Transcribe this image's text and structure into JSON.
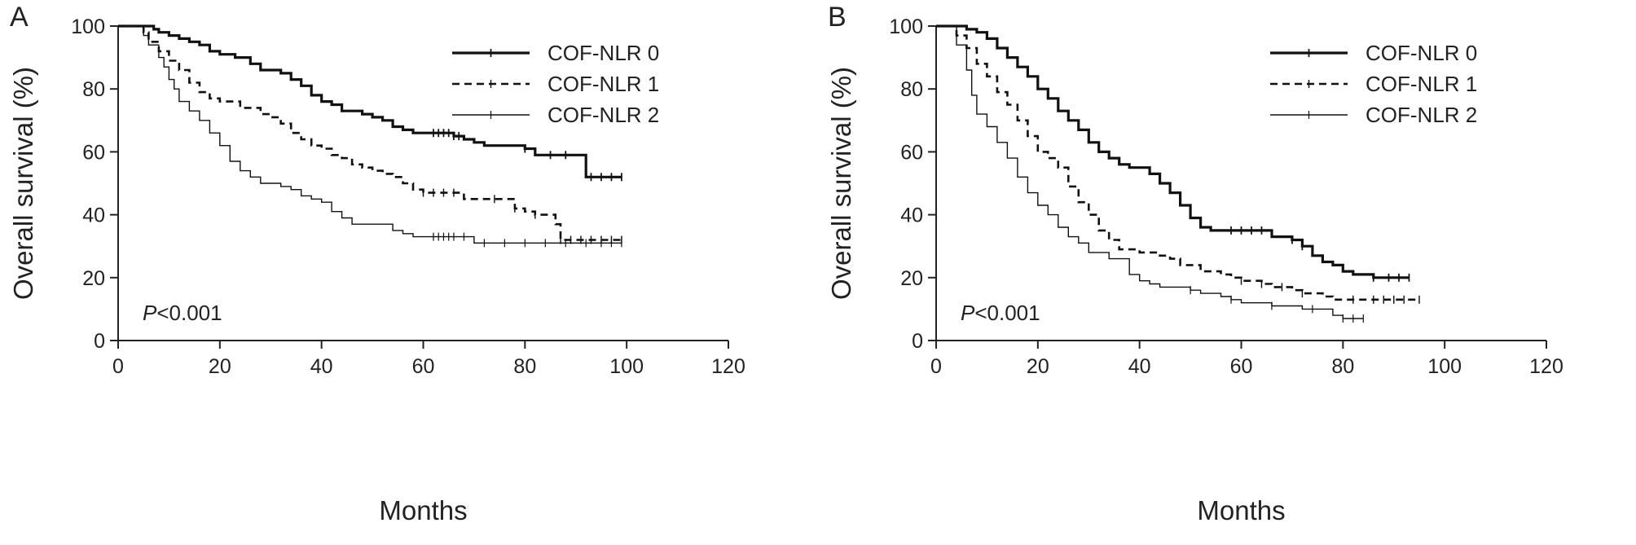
{
  "chart_data": [
    {
      "type": "line",
      "subtype": "kaplan-meier",
      "panel_label": "A",
      "title": "",
      "xlabel": "Months",
      "ylabel": "Overall survival (%)",
      "xlim": [
        0,
        120
      ],
      "ylim": [
        0,
        100
      ],
      "xticks": [
        0,
        20,
        40,
        60,
        80,
        100,
        120
      ],
      "yticks": [
        0,
        20,
        40,
        60,
        80,
        100
      ],
      "grid": false,
      "legend_position": "top-right",
      "annotation": {
        "italic": "P",
        "text": "<0.001"
      },
      "series": [
        {
          "name": "COF-NLR 0",
          "style": "solid-thick",
          "points": [
            [
              0,
              100
            ],
            [
              6,
              100
            ],
            [
              7,
              99
            ],
            [
              8,
              98
            ],
            [
              10,
              97
            ],
            [
              12,
              96
            ],
            [
              14,
              95
            ],
            [
              16,
              94
            ],
            [
              18,
              92
            ],
            [
              20,
              91
            ],
            [
              23,
              90
            ],
            [
              26,
              88
            ],
            [
              28,
              86
            ],
            [
              32,
              85
            ],
            [
              34,
              83
            ],
            [
              36,
              81
            ],
            [
              38,
              78
            ],
            [
              40,
              76
            ],
            [
              42,
              75
            ],
            [
              44,
              73
            ],
            [
              48,
              72
            ],
            [
              50,
              71
            ],
            [
              52,
              70
            ],
            [
              54,
              68
            ],
            [
              56,
              67
            ],
            [
              58,
              66
            ],
            [
              64,
              66
            ],
            [
              66,
              65
            ],
            [
              68,
              64
            ],
            [
              70,
              63
            ],
            [
              72,
              62
            ],
            [
              78,
              62
            ],
            [
              80,
              61
            ],
            [
              82,
              59
            ],
            [
              92,
              59
            ],
            [
              92,
              52
            ],
            [
              99,
              52
            ]
          ],
          "censor_x": [
            62,
            63,
            64,
            65,
            66,
            67,
            80,
            85,
            88,
            93,
            95,
            97,
            99
          ]
        },
        {
          "name": "COF-NLR 1",
          "style": "dashed",
          "points": [
            [
              0,
              100
            ],
            [
              5,
              98
            ],
            [
              6,
              95
            ],
            [
              8,
              92
            ],
            [
              10,
              89
            ],
            [
              12,
              86
            ],
            [
              14,
              82
            ],
            [
              16,
              79
            ],
            [
              18,
              77
            ],
            [
              20,
              76
            ],
            [
              24,
              74
            ],
            [
              28,
              72
            ],
            [
              30,
              71
            ],
            [
              32,
              69
            ],
            [
              34,
              66
            ],
            [
              36,
              64
            ],
            [
              38,
              62
            ],
            [
              40,
              61
            ],
            [
              42,
              59
            ],
            [
              44,
              58
            ],
            [
              46,
              56
            ],
            [
              48,
              55
            ],
            [
              50,
              54
            ],
            [
              52,
              53
            ],
            [
              54,
              52
            ],
            [
              56,
              50
            ],
            [
              58,
              48
            ],
            [
              60,
              47
            ],
            [
              66,
              47
            ],
            [
              68,
              45
            ],
            [
              72,
              45
            ],
            [
              76,
              45
            ],
            [
              78,
              42
            ],
            [
              80,
              41
            ],
            [
              82,
              40
            ],
            [
              84,
              40
            ],
            [
              86,
              37
            ],
            [
              87,
              32
            ],
            [
              99,
              32
            ]
          ],
          "censor_x": [
            60,
            62,
            64,
            66,
            74,
            78,
            82,
            87,
            89,
            91,
            93,
            95,
            97,
            99
          ]
        },
        {
          "name": "COF-NLR 2",
          "style": "solid-thin",
          "points": [
            [
              0,
              100
            ],
            [
              5,
              97
            ],
            [
              6,
              94
            ],
            [
              8,
              90
            ],
            [
              9,
              87
            ],
            [
              10,
              83
            ],
            [
              11,
              80
            ],
            [
              12,
              76
            ],
            [
              14,
              73
            ],
            [
              16,
              70
            ],
            [
              18,
              66
            ],
            [
              20,
              62
            ],
            [
              22,
              57
            ],
            [
              24,
              54
            ],
            [
              26,
              52
            ],
            [
              28,
              50
            ],
            [
              32,
              49
            ],
            [
              34,
              48
            ],
            [
              36,
              46
            ],
            [
              38,
              45
            ],
            [
              40,
              44
            ],
            [
              42,
              41
            ],
            [
              44,
              39
            ],
            [
              46,
              37
            ],
            [
              50,
              37
            ],
            [
              54,
              35
            ],
            [
              56,
              34
            ],
            [
              58,
              33
            ],
            [
              62,
              33
            ],
            [
              68,
              33
            ],
            [
              70,
              31
            ],
            [
              99,
              31
            ]
          ],
          "censor_x": [
            62,
            63,
            64,
            65,
            66,
            68,
            72,
            76,
            80,
            84,
            88,
            92,
            95,
            97,
            99
          ]
        }
      ]
    },
    {
      "type": "line",
      "subtype": "kaplan-meier",
      "panel_label": "B",
      "title": "",
      "xlabel": "Months",
      "ylabel": "Overall survival (%)",
      "xlim": [
        0,
        120
      ],
      "ylim": [
        0,
        100
      ],
      "xticks": [
        0,
        20,
        40,
        60,
        80,
        100,
        120
      ],
      "yticks": [
        0,
        20,
        40,
        60,
        80,
        100
      ],
      "grid": false,
      "legend_position": "top-right",
      "annotation": {
        "italic": "P",
        "text": "<0.001"
      },
      "series": [
        {
          "name": "COF-NLR 0",
          "style": "solid-thick",
          "points": [
            [
              0,
              100
            ],
            [
              5,
              100
            ],
            [
              6,
              99
            ],
            [
              8,
              98
            ],
            [
              10,
              96
            ],
            [
              12,
              93
            ],
            [
              14,
              90
            ],
            [
              16,
              87
            ],
            [
              18,
              84
            ],
            [
              20,
              80
            ],
            [
              22,
              77
            ],
            [
              24,
              73
            ],
            [
              26,
              70
            ],
            [
              28,
              67
            ],
            [
              30,
              63
            ],
            [
              32,
              60
            ],
            [
              34,
              58
            ],
            [
              36,
              56
            ],
            [
              38,
              55
            ],
            [
              40,
              55
            ],
            [
              42,
              53
            ],
            [
              44,
              50
            ],
            [
              46,
              47
            ],
            [
              48,
              43
            ],
            [
              50,
              39
            ],
            [
              52,
              36
            ],
            [
              54,
              35
            ],
            [
              64,
              35
            ],
            [
              66,
              33
            ],
            [
              70,
              32
            ],
            [
              72,
              30
            ],
            [
              74,
              27
            ],
            [
              76,
              25
            ],
            [
              78,
              24
            ],
            [
              80,
              22
            ],
            [
              82,
              21
            ],
            [
              84,
              21
            ],
            [
              86,
              20
            ],
            [
              93,
              20
            ]
          ],
          "censor_x": [
            58,
            60,
            62,
            64,
            70,
            72,
            86,
            89,
            91,
            93
          ]
        },
        {
          "name": "COF-NLR 1",
          "style": "dashed",
          "points": [
            [
              0,
              100
            ],
            [
              4,
              97
            ],
            [
              6,
              93
            ],
            [
              8,
              88
            ],
            [
              10,
              84
            ],
            [
              12,
              79
            ],
            [
              14,
              75
            ],
            [
              16,
              70
            ],
            [
              18,
              65
            ],
            [
              20,
              60
            ],
            [
              22,
              58
            ],
            [
              24,
              55
            ],
            [
              26,
              49
            ],
            [
              28,
              44
            ],
            [
              30,
              40
            ],
            [
              32,
              35
            ],
            [
              34,
              32
            ],
            [
              36,
              29
            ],
            [
              40,
              28
            ],
            [
              44,
              27
            ],
            [
              46,
              26
            ],
            [
              48,
              24
            ],
            [
              52,
              22
            ],
            [
              56,
              21
            ],
            [
              58,
              20
            ],
            [
              60,
              19
            ],
            [
              64,
              18
            ],
            [
              66,
              17
            ],
            [
              68,
              17
            ],
            [
              70,
              16
            ],
            [
              72,
              15
            ],
            [
              76,
              14
            ],
            [
              78,
              13
            ],
            [
              82,
              13
            ],
            [
              95,
              13
            ]
          ],
          "censor_x": [
            60,
            64,
            68,
            72,
            82,
            86,
            88,
            90,
            92,
            95
          ]
        },
        {
          "name": "COF-NLR 2",
          "style": "solid-thin",
          "points": [
            [
              0,
              100
            ],
            [
              4,
              94
            ],
            [
              6,
              86
            ],
            [
              7,
              78
            ],
            [
              8,
              72
            ],
            [
              10,
              68
            ],
            [
              12,
              63
            ],
            [
              14,
              58
            ],
            [
              16,
              52
            ],
            [
              18,
              47
            ],
            [
              20,
              43
            ],
            [
              22,
              40
            ],
            [
              24,
              36
            ],
            [
              26,
              33
            ],
            [
              28,
              31
            ],
            [
              30,
              28
            ],
            [
              34,
              26
            ],
            [
              38,
              21
            ],
            [
              40,
              19
            ],
            [
              42,
              18
            ],
            [
              44,
              17
            ],
            [
              48,
              17
            ],
            [
              50,
              16
            ],
            [
              52,
              15
            ],
            [
              56,
              14
            ],
            [
              58,
              13
            ],
            [
              60,
              12
            ],
            [
              64,
              12
            ],
            [
              66,
              11
            ],
            [
              70,
              11
            ],
            [
              72,
              10
            ],
            [
              76,
              10
            ],
            [
              78,
              8
            ],
            [
              80,
              7
            ],
            [
              84,
              7
            ]
          ],
          "censor_x": [
            50,
            58,
            66,
            74,
            80,
            82,
            84
          ]
        }
      ]
    }
  ]
}
